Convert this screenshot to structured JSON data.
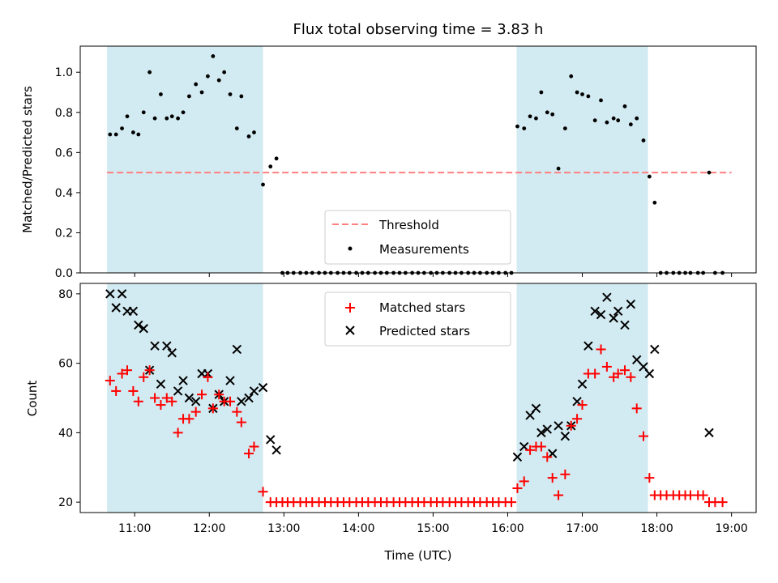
{
  "chart_data": {
    "title": "Flux total observing time = 3.83 h",
    "xlabel": "Time (UTC)",
    "x_units": "hours (UTC, decimal)",
    "xlim": [
      10.27,
      19.33
    ],
    "xticks": [
      11,
      12,
      13,
      14,
      15,
      16,
      17,
      18,
      19
    ],
    "xtick_labels": [
      "11:00",
      "12:00",
      "13:00",
      "14:00",
      "15:00",
      "16:00",
      "17:00",
      "18:00",
      "19:00"
    ],
    "shaded_intervals": [
      [
        10.63,
        12.72
      ],
      [
        16.12,
        17.88
      ]
    ],
    "shade_color": "#add8e6",
    "top": {
      "type": "scatter",
      "ylabel": "Matched/Predicted stars",
      "ylim": [
        0,
        1.13
      ],
      "yticks": [
        0.0,
        0.2,
        0.4,
        0.6,
        0.8,
        1.0
      ],
      "ytick_labels": [
        "0.0",
        "0.2",
        "0.4",
        "0.6",
        "0.8",
        "1.0"
      ],
      "threshold": 0.5,
      "threshold_x": [
        10.63,
        19.0
      ],
      "threshold_color": "#ff7f7f",
      "legend_position": "lower-center",
      "legend": [
        "Threshold",
        "Measurements"
      ],
      "measurements": [
        [
          10.67,
          0.69
        ],
        [
          10.75,
          0.69
        ],
        [
          10.83,
          0.72
        ],
        [
          10.9,
          0.78
        ],
        [
          10.98,
          0.7
        ],
        [
          11.05,
          0.69
        ],
        [
          11.12,
          0.8
        ],
        [
          11.2,
          1.0
        ],
        [
          11.27,
          0.77
        ],
        [
          11.35,
          0.89
        ],
        [
          11.43,
          0.77
        ],
        [
          11.5,
          0.78
        ],
        [
          11.58,
          0.77
        ],
        [
          11.65,
          0.8
        ],
        [
          11.73,
          0.88
        ],
        [
          11.82,
          0.94
        ],
        [
          11.9,
          0.9
        ],
        [
          11.98,
          0.98
        ],
        [
          12.05,
          1.08
        ],
        [
          12.13,
          0.96
        ],
        [
          12.2,
          1.0
        ],
        [
          12.28,
          0.89
        ],
        [
          12.37,
          0.72
        ],
        [
          12.43,
          0.88
        ],
        [
          12.53,
          0.68
        ],
        [
          12.6,
          0.7
        ],
        [
          12.72,
          0.44
        ],
        [
          12.82,
          0.53
        ],
        [
          12.9,
          0.57
        ],
        [
          12.98,
          0.0
        ],
        [
          13.05,
          0.0
        ],
        [
          13.13,
          0.0
        ],
        [
          13.22,
          0.0
        ],
        [
          13.3,
          0.0
        ],
        [
          13.38,
          0.0
        ],
        [
          13.47,
          0.0
        ],
        [
          13.55,
          0.0
        ],
        [
          13.63,
          0.0
        ],
        [
          13.72,
          0.0
        ],
        [
          13.8,
          0.0
        ],
        [
          13.88,
          0.0
        ],
        [
          13.97,
          0.0
        ],
        [
          14.05,
          0.0
        ],
        [
          14.13,
          0.0
        ],
        [
          14.22,
          0.0
        ],
        [
          14.3,
          0.0
        ],
        [
          14.38,
          0.0
        ],
        [
          14.47,
          0.0
        ],
        [
          14.55,
          0.0
        ],
        [
          14.63,
          0.0
        ],
        [
          14.72,
          0.0
        ],
        [
          14.8,
          0.0
        ],
        [
          14.88,
          0.0
        ],
        [
          14.97,
          0.0
        ],
        [
          15.05,
          0.0
        ],
        [
          15.13,
          0.0
        ],
        [
          15.22,
          0.0
        ],
        [
          15.3,
          0.0
        ],
        [
          15.38,
          0.0
        ],
        [
          15.47,
          0.0
        ],
        [
          15.55,
          0.0
        ],
        [
          15.63,
          0.0
        ],
        [
          15.72,
          0.0
        ],
        [
          15.8,
          0.0
        ],
        [
          15.88,
          0.0
        ],
        [
          15.97,
          0.0
        ],
        [
          16.05,
          0.0
        ],
        [
          16.13,
          0.73
        ],
        [
          16.22,
          0.72
        ],
        [
          16.3,
          0.78
        ],
        [
          16.38,
          0.77
        ],
        [
          16.45,
          0.9
        ],
        [
          16.53,
          0.8
        ],
        [
          16.6,
          0.79
        ],
        [
          16.68,
          0.52
        ],
        [
          16.77,
          0.72
        ],
        [
          16.85,
          0.98
        ],
        [
          16.93,
          0.9
        ],
        [
          17.0,
          0.89
        ],
        [
          17.08,
          0.88
        ],
        [
          17.17,
          0.76
        ],
        [
          17.25,
          0.86
        ],
        [
          17.33,
          0.75
        ],
        [
          17.42,
          0.77
        ],
        [
          17.48,
          0.76
        ],
        [
          17.57,
          0.83
        ],
        [
          17.65,
          0.74
        ],
        [
          17.73,
          0.77
        ],
        [
          17.82,
          0.66
        ],
        [
          17.9,
          0.48
        ],
        [
          17.97,
          0.35
        ],
        [
          18.05,
          0.0
        ],
        [
          18.13,
          0.0
        ],
        [
          18.22,
          0.0
        ],
        [
          18.3,
          0.0
        ],
        [
          18.38,
          0.0
        ],
        [
          18.45,
          0.0
        ],
        [
          18.55,
          0.0
        ],
        [
          18.62,
          0.0
        ],
        [
          18.7,
          0.5
        ],
        [
          18.78,
          0.0
        ],
        [
          18.88,
          0.0
        ]
      ]
    },
    "bottom": {
      "type": "scatter",
      "ylabel": "Count",
      "ylim": [
        17,
        83
      ],
      "yticks": [
        20,
        40,
        60,
        80
      ],
      "ytick_labels": [
        "20",
        "40",
        "60",
        "80"
      ],
      "legend_position": "top-center",
      "matched_color": "#ff0000",
      "predicted_color": "#000000",
      "series": [
        {
          "name": "Matched stars",
          "marker": "plus",
          "points": [
            [
              10.67,
              55
            ],
            [
              10.75,
              52
            ],
            [
              10.83,
              57
            ],
            [
              10.9,
              58
            ],
            [
              10.98,
              52
            ],
            [
              11.05,
              49
            ],
            [
              11.12,
              56
            ],
            [
              11.2,
              58
            ],
            [
              11.27,
              50
            ],
            [
              11.35,
              48
            ],
            [
              11.43,
              50
            ],
            [
              11.5,
              49
            ],
            [
              11.58,
              40
            ],
            [
              11.65,
              44
            ],
            [
              11.73,
              44
            ],
            [
              11.82,
              46
            ],
            [
              11.9,
              51
            ],
            [
              11.98,
              56
            ],
            [
              12.05,
              47
            ],
            [
              12.13,
              51
            ],
            [
              12.2,
              49
            ],
            [
              12.28,
              49
            ],
            [
              12.37,
              46
            ],
            [
              12.43,
              43
            ],
            [
              12.53,
              34
            ],
            [
              12.6,
              36
            ],
            [
              12.72,
              23
            ],
            [
              12.82,
              20
            ],
            [
              12.9,
              20
            ],
            [
              12.98,
              20
            ],
            [
              13.05,
              20
            ],
            [
              13.13,
              20
            ],
            [
              13.22,
              20
            ],
            [
              13.3,
              20
            ],
            [
              13.38,
              20
            ],
            [
              13.47,
              20
            ],
            [
              13.55,
              20
            ],
            [
              13.63,
              20
            ],
            [
              13.72,
              20
            ],
            [
              13.8,
              20
            ],
            [
              13.88,
              20
            ],
            [
              13.97,
              20
            ],
            [
              14.05,
              20
            ],
            [
              14.13,
              20
            ],
            [
              14.22,
              20
            ],
            [
              14.3,
              20
            ],
            [
              14.38,
              20
            ],
            [
              14.47,
              20
            ],
            [
              14.55,
              20
            ],
            [
              14.63,
              20
            ],
            [
              14.72,
              20
            ],
            [
              14.8,
              20
            ],
            [
              14.88,
              20
            ],
            [
              14.97,
              20
            ],
            [
              15.05,
              20
            ],
            [
              15.13,
              20
            ],
            [
              15.22,
              20
            ],
            [
              15.3,
              20
            ],
            [
              15.38,
              20
            ],
            [
              15.47,
              20
            ],
            [
              15.55,
              20
            ],
            [
              15.63,
              20
            ],
            [
              15.72,
              20
            ],
            [
              15.8,
              20
            ],
            [
              15.88,
              20
            ],
            [
              15.97,
              20
            ],
            [
              16.05,
              20
            ],
            [
              16.13,
              24
            ],
            [
              16.22,
              26
            ],
            [
              16.3,
              35
            ],
            [
              16.38,
              36
            ],
            [
              16.45,
              36
            ],
            [
              16.53,
              33
            ],
            [
              16.6,
              27
            ],
            [
              16.68,
              22
            ],
            [
              16.77,
              28
            ],
            [
              16.85,
              42
            ],
            [
              16.93,
              44
            ],
            [
              17.0,
              48
            ],
            [
              17.08,
              57
            ],
            [
              17.17,
              57
            ],
            [
              17.25,
              64
            ],
            [
              17.33,
              59
            ],
            [
              17.42,
              56
            ],
            [
              17.48,
              57
            ],
            [
              17.57,
              58
            ],
            [
              17.65,
              56
            ],
            [
              17.73,
              47
            ],
            [
              17.82,
              39
            ],
            [
              17.9,
              27
            ],
            [
              17.97,
              22
            ],
            [
              18.05,
              22
            ],
            [
              18.13,
              22
            ],
            [
              18.22,
              22
            ],
            [
              18.3,
              22
            ],
            [
              18.38,
              22
            ],
            [
              18.45,
              22
            ],
            [
              18.55,
              22
            ],
            [
              18.62,
              22
            ],
            [
              18.7,
              20
            ],
            [
              18.78,
              20
            ],
            [
              18.88,
              20
            ]
          ]
        },
        {
          "name": "Predicted stars",
          "marker": "x",
          "points": [
            [
              10.67,
              80
            ],
            [
              10.75,
              76
            ],
            [
              10.83,
              80
            ],
            [
              10.9,
              75
            ],
            [
              10.98,
              75
            ],
            [
              11.05,
              71
            ],
            [
              11.12,
              70
            ],
            [
              11.2,
              58
            ],
            [
              11.27,
              65
            ],
            [
              11.35,
              54
            ],
            [
              11.43,
              65
            ],
            [
              11.5,
              63
            ],
            [
              11.58,
              52
            ],
            [
              11.65,
              55
            ],
            [
              11.73,
              50
            ],
            [
              11.82,
              49
            ],
            [
              11.9,
              57
            ],
            [
              11.98,
              57
            ],
            [
              12.05,
              47
            ],
            [
              12.13,
              51
            ],
            [
              12.2,
              49
            ],
            [
              12.28,
              55
            ],
            [
              12.37,
              64
            ],
            [
              12.43,
              49
            ],
            [
              12.53,
              50
            ],
            [
              12.6,
              52
            ],
            [
              12.72,
              53
            ],
            [
              12.82,
              38
            ],
            [
              12.9,
              35
            ],
            [
              16.13,
              33
            ],
            [
              16.22,
              36
            ],
            [
              16.3,
              45
            ],
            [
              16.38,
              47
            ],
            [
              16.45,
              40
            ],
            [
              16.53,
              41
            ],
            [
              16.6,
              34
            ],
            [
              16.68,
              42
            ],
            [
              16.77,
              39
            ],
            [
              16.85,
              42
            ],
            [
              16.93,
              49
            ],
            [
              17.0,
              54
            ],
            [
              17.08,
              65
            ],
            [
              17.17,
              75
            ],
            [
              17.25,
              74
            ],
            [
              17.33,
              79
            ],
            [
              17.42,
              73
            ],
            [
              17.48,
              75
            ],
            [
              17.57,
              71
            ],
            [
              17.65,
              77
            ],
            [
              17.73,
              61
            ],
            [
              17.82,
              59
            ],
            [
              17.9,
              57
            ],
            [
              17.97,
              64
            ],
            [
              18.7,
              40
            ]
          ]
        }
      ]
    }
  }
}
